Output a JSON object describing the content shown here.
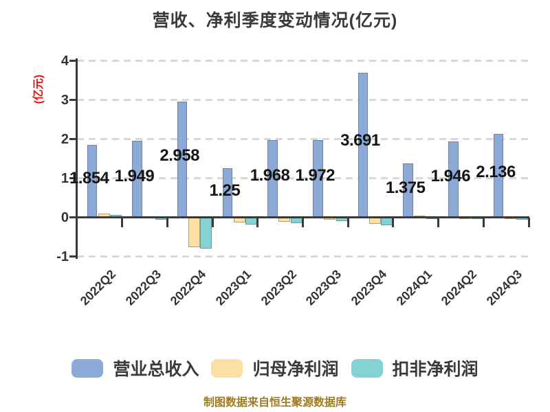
{
  "title": "营收、净利季度变动情况(亿元)",
  "y_axis_label": "(亿元)",
  "source": "制图数据来自恒生聚源数据库",
  "chart_data": {
    "type": "bar",
    "title": "营收、净利季度变动情况(亿元)",
    "ylabel": "(亿元)",
    "categories": [
      "2022Q2",
      "2022Q3",
      "2022Q4",
      "2023Q1",
      "2023Q2",
      "2023Q3",
      "2023Q4",
      "2024Q1",
      "2024Q2",
      "2024Q3"
    ],
    "series": [
      {
        "name": "营业总收入",
        "color": "#8DA9D8",
        "values": [
          1.854,
          1.949,
          2.958,
          1.25,
          1.968,
          1.972,
          3.691,
          1.375,
          1.946,
          2.136
        ],
        "labels": [
          "1.854",
          "1.949",
          "2.958",
          "1.25",
          "1.968",
          "1.972",
          "3.691",
          "1.375",
          "1.946",
          "2.136"
        ]
      },
      {
        "name": "归母净利润",
        "color": "#FBDFA5",
        "values": [
          0.1,
          0.02,
          -0.76,
          -0.13,
          -0.12,
          -0.07,
          -0.16,
          0.05,
          -0.02,
          -0.01
        ]
      },
      {
        "name": "扣非净利润",
        "color": "#85D2D5",
        "values": [
          0.07,
          -0.07,
          -0.8,
          -0.18,
          -0.15,
          -0.1,
          -0.21,
          -0.02,
          -0.03,
          -0.07
        ]
      }
    ],
    "ylim": [
      -1,
      4
    ],
    "yticks": [
      4,
      3,
      2,
      1,
      0,
      -1
    ],
    "ytick_labels": [
      "4",
      "3",
      "2",
      "1",
      "0",
      "-1"
    ],
    "grid": "horizontal dashed",
    "legend_position": "bottom",
    "axis_color": "#3a3a3a",
    "grid_color": "#d8d8d8",
    "value_label_color": "#151515",
    "ylabel_color": "#ee1111"
  }
}
